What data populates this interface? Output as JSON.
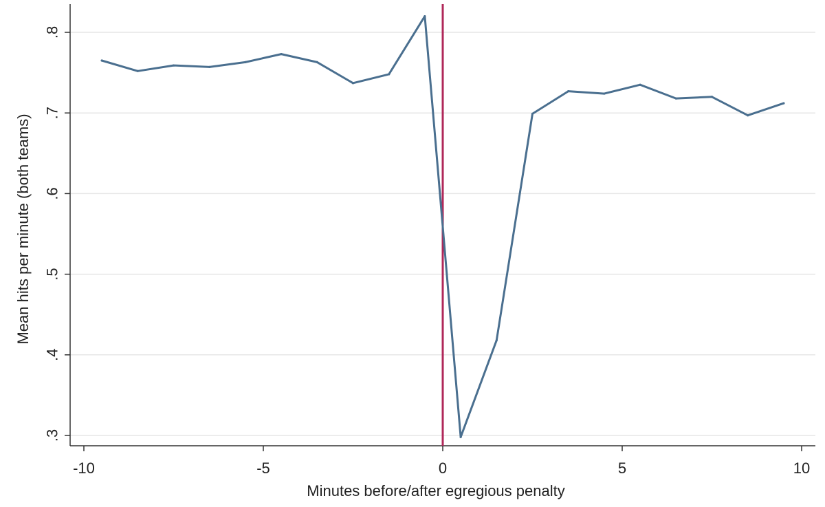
{
  "chart_data": {
    "type": "line",
    "title": "",
    "xlabel": "Minutes before/after egregious penalty",
    "ylabel": "Mean hits per minute (both teams)",
    "xlim": [
      -10,
      10
    ],
    "ylim": [
      0.3,
      0.82
    ],
    "x_ticks": [
      -10,
      -5,
      0,
      5,
      10
    ],
    "x_tick_labels": [
      "-10",
      "-5",
      "0",
      "5",
      "10"
    ],
    "y_ticks": [
      0.3,
      0.4,
      0.5,
      0.6,
      0.7,
      0.8
    ],
    "y_tick_labels": [
      ".3",
      ".4",
      ".5",
      ".6",
      ".7",
      ".8"
    ],
    "grid": "horizontal",
    "reference_line": {
      "x": 0,
      "color": "#b0285a"
    },
    "series": [
      {
        "color": "#4a6f8f",
        "x": [
          -9.5,
          -8.5,
          -7.5,
          -6.5,
          -5.5,
          -4.5,
          -3.5,
          -2.5,
          -1.5,
          -0.5,
          0.5,
          1.5,
          2.5,
          3.5,
          4.5,
          5.5,
          6.5,
          7.5,
          8.5,
          9.5
        ],
        "y": [
          0.765,
          0.752,
          0.759,
          0.757,
          0.763,
          0.773,
          0.763,
          0.737,
          0.748,
          0.82,
          0.298,
          0.418,
          0.699,
          0.727,
          0.724,
          0.735,
          0.718,
          0.72,
          0.697,
          0.712
        ]
      }
    ]
  }
}
